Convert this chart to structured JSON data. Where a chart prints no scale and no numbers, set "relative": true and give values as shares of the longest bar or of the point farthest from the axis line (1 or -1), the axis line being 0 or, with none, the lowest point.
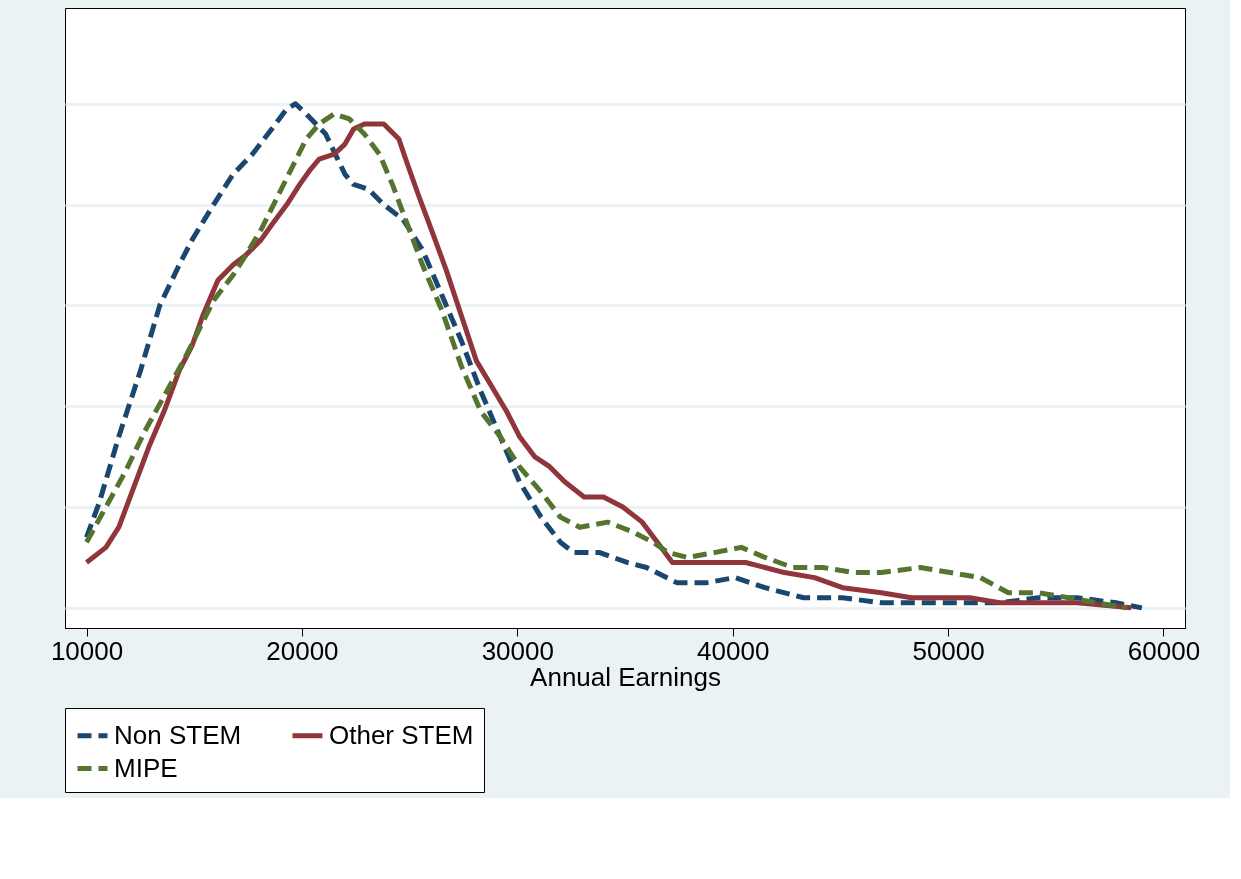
{
  "chart_data": {
    "type": "line",
    "relative": true,
    "xlabel": "Annual Earnings",
    "xlim": [
      9000,
      61000
    ],
    "xticks": [
      10000,
      20000,
      30000,
      40000,
      50000,
      60000
    ],
    "grid": "y",
    "legend": "bottom",
    "marker": "none",
    "series": [
      {
        "name": "Non STEM",
        "color": "#1a476f",
        "line_style": "dashed",
        "x": [
          10000,
          10600,
          11500,
          12500,
          13400,
          14300,
          14900,
          15900,
          16800,
          17700,
          18600,
          19300,
          19700,
          20200,
          21100,
          22000,
          22400,
          23100,
          23800,
          24700,
          25600,
          26500,
          27400,
          28300,
          29200,
          30100,
          31100,
          32000,
          32600,
          33800,
          35100,
          36000,
          37400,
          38800,
          40100,
          41500,
          43300,
          45100,
          46900,
          48700,
          50600,
          52400,
          54200,
          56000,
          57800,
          59000
        ],
        "values": [
          0.14,
          0.21,
          0.34,
          0.47,
          0.6,
          0.68,
          0.73,
          0.8,
          0.86,
          0.9,
          0.95,
          0.99,
          1.0,
          0.98,
          0.94,
          0.86,
          0.84,
          0.83,
          0.8,
          0.77,
          0.71,
          0.62,
          0.53,
          0.43,
          0.34,
          0.25,
          0.18,
          0.13,
          0.11,
          0.11,
          0.09,
          0.08,
          0.05,
          0.05,
          0.06,
          0.04,
          0.02,
          0.02,
          0.01,
          0.01,
          0.01,
          0.01,
          0.02,
          0.02,
          0.01,
          0
        ]
      },
      {
        "name": "Other STEM",
        "color": "#90353b",
        "line_style": "solid",
        "x": [
          10000,
          10900,
          11500,
          12200,
          12900,
          13600,
          14300,
          14900,
          15400,
          16100,
          16800,
          17400,
          18100,
          18600,
          19300,
          19900,
          20400,
          20800,
          21500,
          22000,
          22400,
          22900,
          23300,
          23800,
          24500,
          24900,
          25400,
          26100,
          26700,
          27400,
          28100,
          28800,
          29500,
          30100,
          30800,
          31500,
          32200,
          33100,
          34000,
          34900,
          35800,
          36500,
          37200,
          37900,
          38800,
          39700,
          40600,
          41500,
          42400,
          43800,
          45100,
          46900,
          48300,
          49700,
          51000,
          52400,
          53700,
          56000,
          58500
        ],
        "values": [
          0.09,
          0.12,
          0.16,
          0.24,
          0.32,
          0.39,
          0.47,
          0.52,
          0.58,
          0.65,
          0.68,
          0.7,
          0.73,
          0.76,
          0.8,
          0.84,
          0.87,
          0.89,
          0.9,
          0.92,
          0.95,
          0.96,
          0.96,
          0.96,
          0.93,
          0.88,
          0.82,
          0.74,
          0.67,
          0.58,
          0.49,
          0.44,
          0.39,
          0.34,
          0.3,
          0.28,
          0.25,
          0.22,
          0.22,
          0.2,
          0.17,
          0.13,
          0.09,
          0.09,
          0.09,
          0.09,
          0.09,
          0.08,
          0.07,
          0.06,
          0.04,
          0.03,
          0.02,
          0.02,
          0.02,
          0.01,
          0.01,
          0.01,
          0
        ]
      },
      {
        "name": "MIPE",
        "color": "#55752f",
        "line_style": "dashed",
        "x": [
          10000,
          10900,
          11800,
          12700,
          13600,
          14500,
          15200,
          15900,
          16800,
          17400,
          18100,
          18800,
          19500,
          20200,
          20800,
          21500,
          22200,
          22900,
          23600,
          24200,
          24900,
          25600,
          26500,
          27400,
          28300,
          29200,
          30100,
          31100,
          32000,
          32900,
          34200,
          35400,
          36300,
          37000,
          37900,
          39200,
          40400,
          41500,
          42800,
          44200,
          45600,
          46900,
          48700,
          50100,
          51500,
          52800,
          54200,
          55600,
          56900,
          58300
        ],
        "values": [
          0.13,
          0.2,
          0.27,
          0.35,
          0.42,
          0.49,
          0.55,
          0.61,
          0.66,
          0.7,
          0.75,
          0.81,
          0.87,
          0.93,
          0.96,
          0.98,
          0.97,
          0.94,
          0.9,
          0.84,
          0.76,
          0.68,
          0.59,
          0.48,
          0.39,
          0.34,
          0.28,
          0.23,
          0.18,
          0.16,
          0.17,
          0.15,
          0.13,
          0.11,
          0.1,
          0.11,
          0.12,
          0.1,
          0.08,
          0.08,
          0.07,
          0.07,
          0.08,
          0.07,
          0.06,
          0.03,
          0.03,
          0.02,
          0.01,
          0
        ]
      }
    ]
  }
}
